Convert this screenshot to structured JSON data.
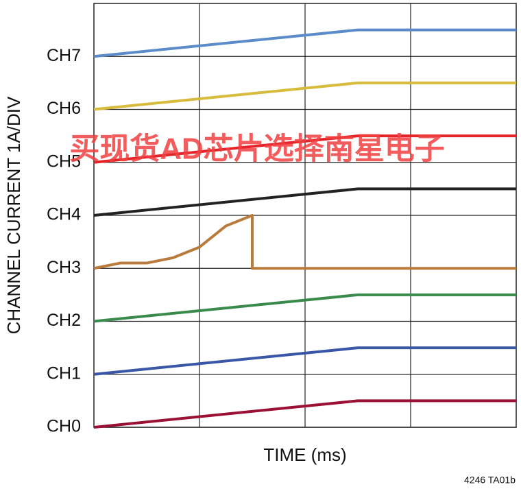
{
  "chart_data": {
    "type": "line",
    "ylabel": "CHANNEL CURRENT 1A/DIV",
    "xlabel": "TIME (ms)",
    "annotations": [
      "4246 TA01b",
      "买现货AD芯片选择南星电子"
    ],
    "xlim": [
      0,
      4
    ],
    "ylim": [
      0,
      8
    ],
    "xgrid": [
      1,
      2,
      3
    ],
    "yticks": [
      {
        "value": 0,
        "label": "CH0"
      },
      {
        "value": 1,
        "label": "CH1"
      },
      {
        "value": 2,
        "label": "CH2"
      },
      {
        "value": 3,
        "label": "CH3"
      },
      {
        "value": 4,
        "label": "CH4"
      },
      {
        "value": 5,
        "label": "CH5"
      },
      {
        "value": 6,
        "label": "CH6"
      },
      {
        "value": 7,
        "label": "CH7"
      }
    ],
    "grid": true,
    "series": [
      {
        "color": "#9b1035",
        "x": [
          0,
          2.5,
          4
        ],
        "values": [
          0,
          0.5,
          0.5
        ]
      },
      {
        "color": "#3a56a6",
        "x": [
          0,
          2.5,
          4
        ],
        "values": [
          1,
          1.5,
          1.5
        ]
      },
      {
        "color": "#3a8a4c",
        "x": [
          0,
          2.5,
          4
        ],
        "values": [
          2,
          2.5,
          2.5
        ]
      },
      {
        "color": "#b87b3c",
        "x": [
          0,
          0.25,
          0.5,
          0.75,
          1,
          1.25,
          1.5,
          1.5,
          4
        ],
        "values": [
          3,
          3.1,
          3.1,
          3.2,
          3.4,
          3.8,
          4,
          3,
          3
        ]
      },
      {
        "color": "#222222",
        "x": [
          0,
          2.5,
          4
        ],
        "values": [
          4,
          4.5,
          4.5
        ]
      },
      {
        "color": "#e52228",
        "x": [
          0,
          2.5,
          4
        ],
        "values": [
          5,
          5.5,
          5.5
        ]
      },
      {
        "color": "#d6bb3c",
        "x": [
          0,
          2.5,
          4
        ],
        "values": [
          6,
          6.5,
          6.5
        ]
      },
      {
        "color": "#5b8cc9",
        "x": [
          0,
          2.5,
          4
        ],
        "values": [
          7,
          7.5,
          7.5
        ]
      }
    ]
  }
}
